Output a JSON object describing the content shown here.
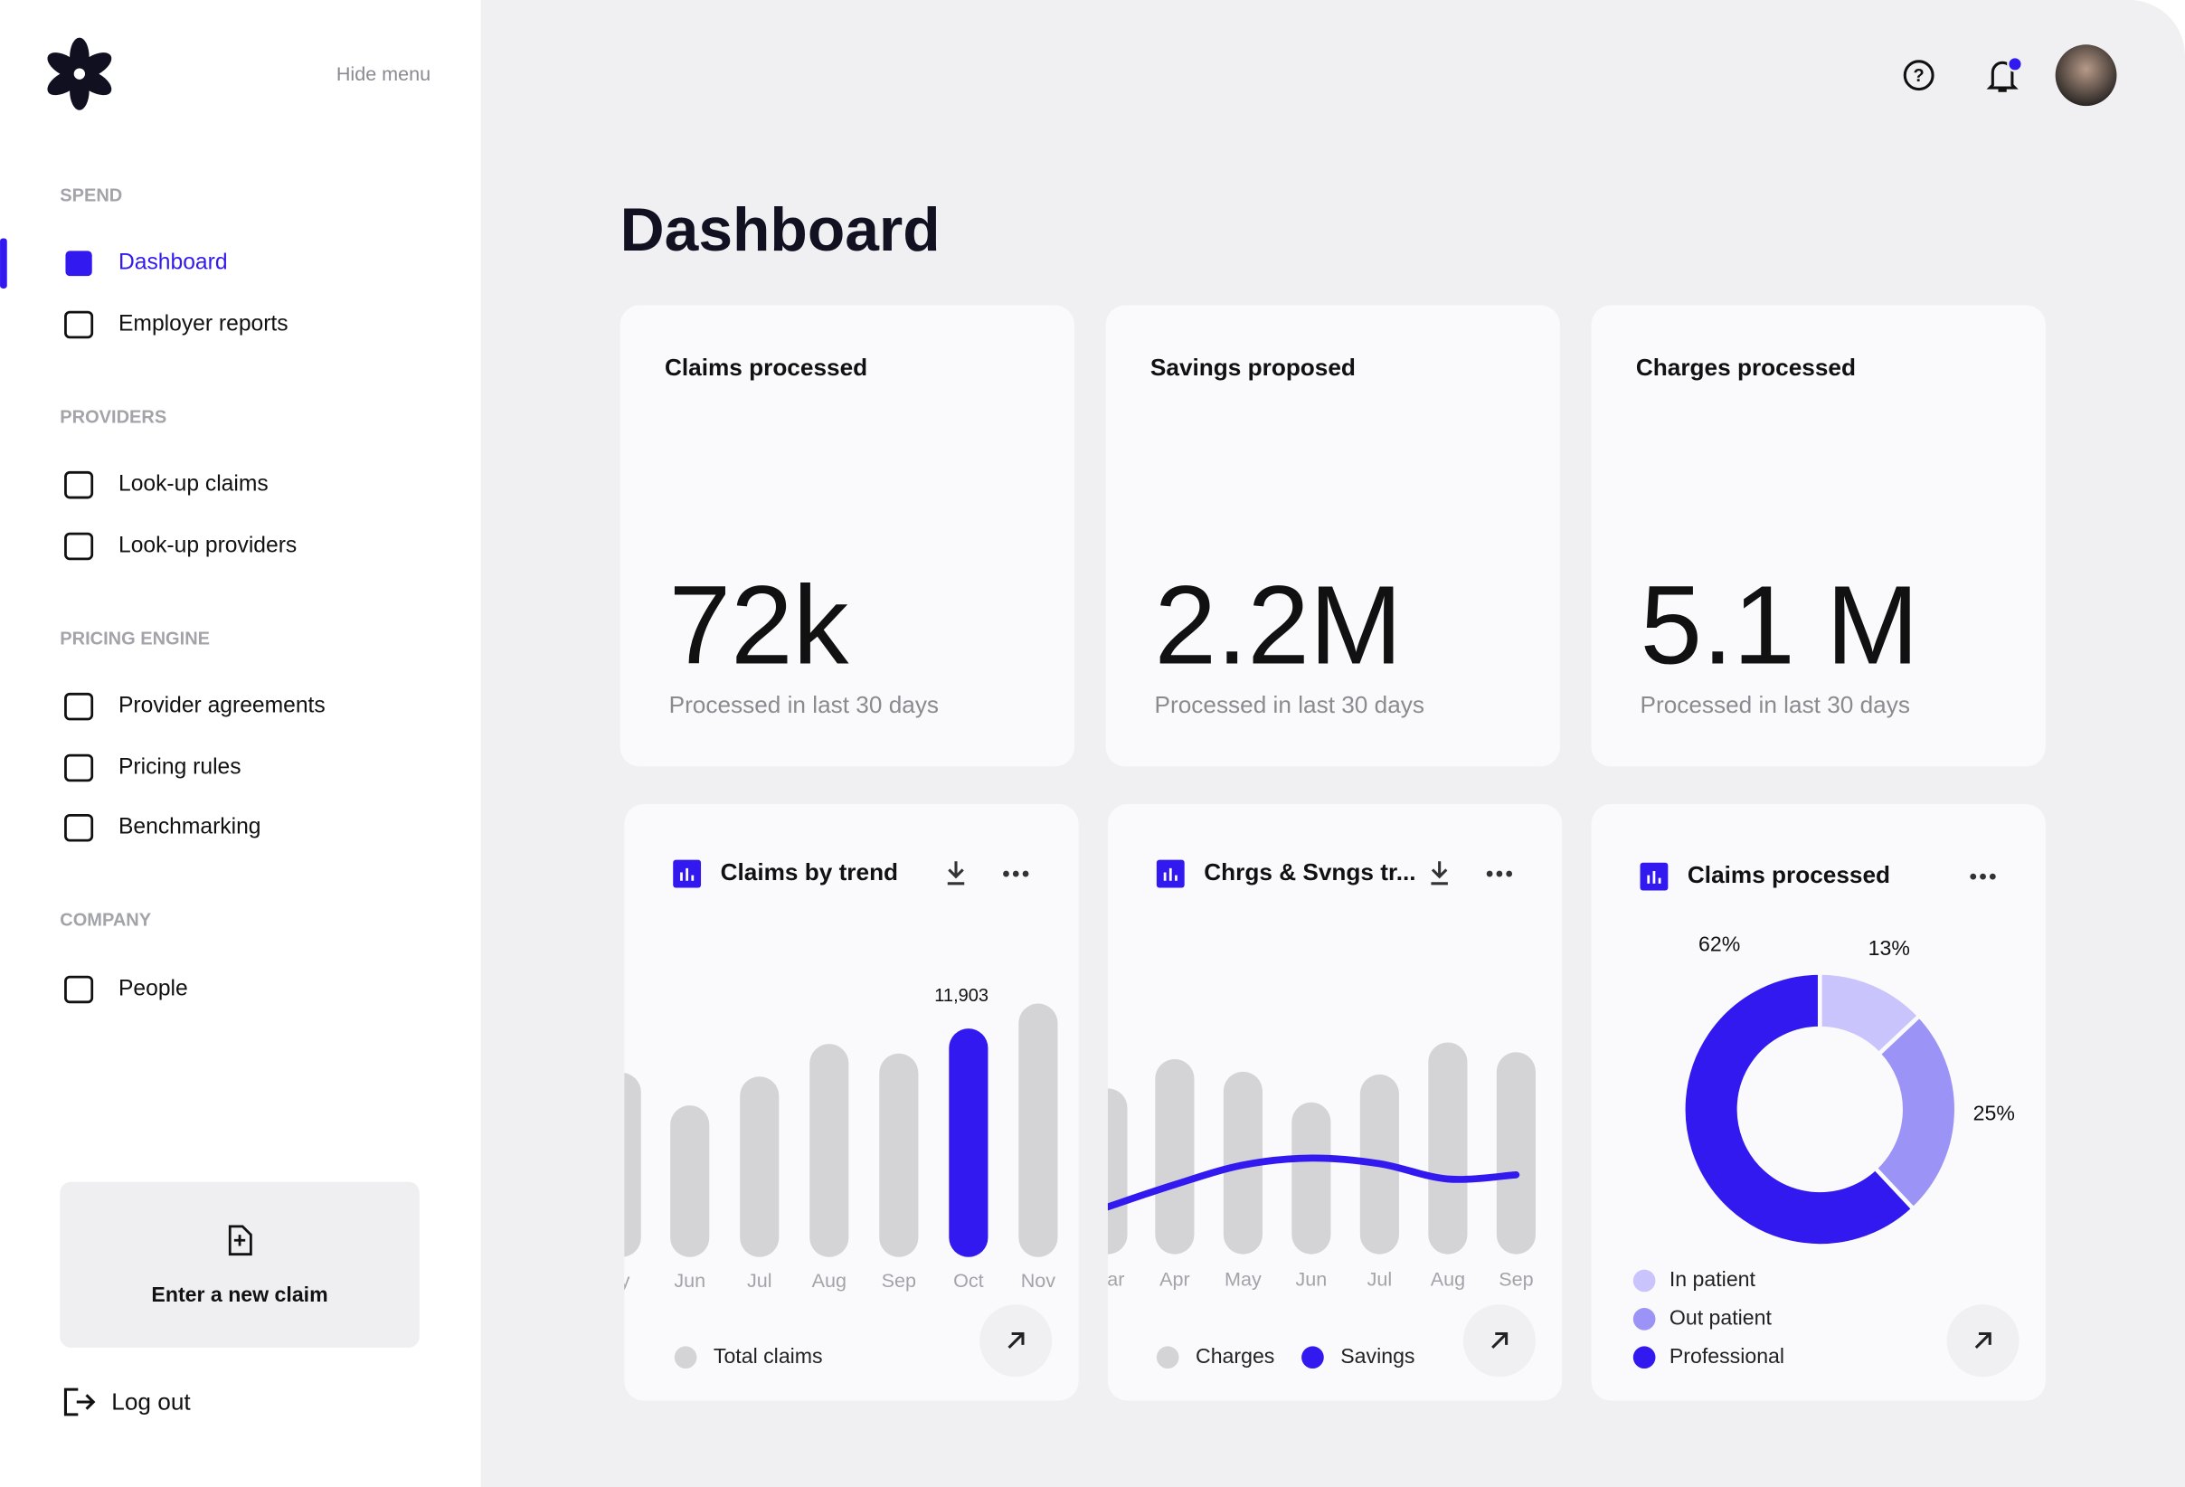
{
  "sidebar": {
    "hide_menu": "Hide menu",
    "sections": [
      {
        "title": "SPEND",
        "items": [
          "Dashboard",
          "Employer reports"
        ]
      },
      {
        "title": "PROVIDERS",
        "items": [
          "Look-up claims",
          "Look-up providers"
        ]
      },
      {
        "title": "PRICING ENGINE",
        "items": [
          "Provider agreements",
          "Pricing rules",
          "Benchmarking"
        ]
      },
      {
        "title": "COMPANY",
        "items": [
          "People"
        ]
      }
    ],
    "new_claim": "Enter a new claim",
    "logout": "Log out"
  },
  "header": {
    "title": "Dashboard"
  },
  "kpis": [
    {
      "title": "Claims processed",
      "value": "72k",
      "caption": "Processed in last 30 days"
    },
    {
      "title": "Savings proposed",
      "value": "2.2M",
      "caption": "Processed in last 30 days"
    },
    {
      "title": "Charges processed",
      "value": "5.1 M",
      "caption": "Processed in last 30 days"
    }
  ],
  "chart_data": [
    {
      "type": "bar",
      "title": "Claims by trend",
      "categories": [
        "ay",
        "Jun",
        "Jul",
        "Aug",
        "Sep",
        "Oct",
        "Nov"
      ],
      "series": [
        {
          "name": "Total claims",
          "color": "#d4d4d7",
          "values": [
            9600,
            7900,
            9400,
            11100,
            10600,
            11903,
            13200
          ]
        }
      ],
      "value_labels": [
        null,
        null,
        null,
        null,
        null,
        "11,903",
        null
      ],
      "highlight_color": "#3219f0"
    },
    {
      "type": "bar-line",
      "title": "Chrgs & Svngs tr...",
      "categories": [
        "ar",
        "Apr",
        "May",
        "Jun",
        "Jul",
        "Aug",
        "Sep"
      ],
      "series": [
        {
          "name": "Charges",
          "color": "#d4d4d7",
          "values": [
            119,
            140,
            131,
            109,
            129,
            152,
            145
          ]
        },
        {
          "name": "Savings",
          "color": "#3219f0",
          "values": [
            34,
            50,
            64,
            69,
            65,
            54,
            57
          ]
        }
      ]
    },
    {
      "type": "donut",
      "title": "Claims processed",
      "categories": [
        "In patient",
        "Out patient",
        "Professional"
      ],
      "values": [
        13,
        25,
        62
      ],
      "value_labels": [
        "13%",
        "25%",
        "62%"
      ],
      "colors": [
        "#c9c4fb",
        "#9b93f5",
        "#3219f0"
      ]
    }
  ]
}
